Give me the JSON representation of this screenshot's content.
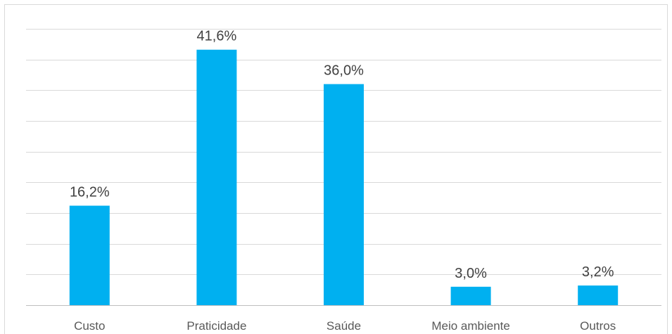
{
  "chart_data": {
    "type": "bar",
    "categories": [
      "Custo",
      "Praticidade",
      "Saúde",
      "Meio ambiente",
      "Outros"
    ],
    "values": [
      16.2,
      41.6,
      36.0,
      3.0,
      3.2
    ],
    "data_labels": [
      "16,2%",
      "41,6%",
      "36,0%",
      "3,0%",
      "3,2%"
    ],
    "title": "",
    "xlabel": "",
    "ylabel": "",
    "ylim": [
      0,
      45
    ],
    "grid": true,
    "legend": "none",
    "colors": {
      "bar": "#00B0F0",
      "grid": "#D9D9D9",
      "text": "#404040"
    }
  }
}
